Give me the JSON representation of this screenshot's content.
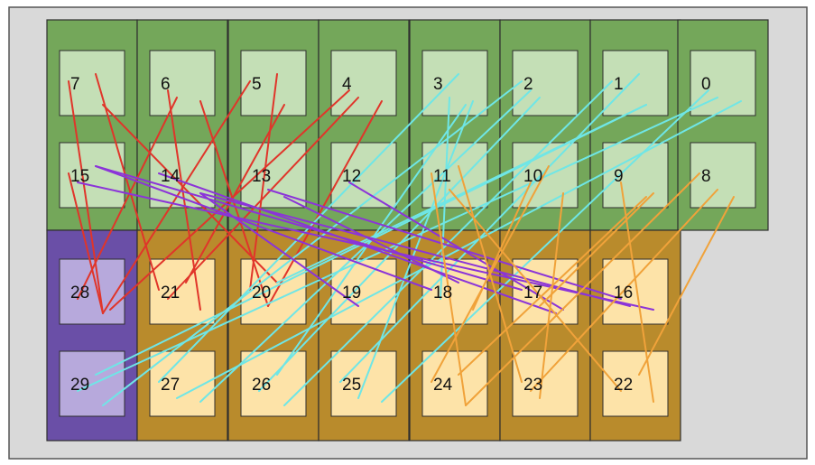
{
  "colors": {
    "background": "#d9d9d9",
    "frame_border": "#555555",
    "green_block": "#74a75a",
    "green_inner": "#c4dfb6",
    "yellow_block": "#b98b2c",
    "yellow_inner": "#fde3a8",
    "purple_block": "#6a4fa7",
    "purple_inner": "#b7a9dc",
    "block_border": "#2e2e2e",
    "edge_red": "#e0352a",
    "edge_cyan": "#6fe6e6",
    "edge_purple": "#8b34d8",
    "edge_orange": "#f0a23a"
  },
  "nodes": [
    {
      "id": "0",
      "group": "green"
    },
    {
      "id": "1",
      "group": "green"
    },
    {
      "id": "2",
      "group": "green"
    },
    {
      "id": "3",
      "group": "green"
    },
    {
      "id": "4",
      "group": "green"
    },
    {
      "id": "5",
      "group": "green"
    },
    {
      "id": "6",
      "group": "green"
    },
    {
      "id": "7",
      "group": "green"
    },
    {
      "id": "8",
      "group": "green"
    },
    {
      "id": "9",
      "group": "green"
    },
    {
      "id": "10",
      "group": "green"
    },
    {
      "id": "11",
      "group": "green"
    },
    {
      "id": "12",
      "group": "green"
    },
    {
      "id": "13",
      "group": "green"
    },
    {
      "id": "14",
      "group": "green"
    },
    {
      "id": "15",
      "group": "green"
    },
    {
      "id": "16",
      "group": "yellow"
    },
    {
      "id": "17",
      "group": "yellow"
    },
    {
      "id": "18",
      "group": "yellow"
    },
    {
      "id": "19",
      "group": "yellow"
    },
    {
      "id": "20",
      "group": "yellow"
    },
    {
      "id": "21",
      "group": "yellow"
    },
    {
      "id": "22",
      "group": "yellow"
    },
    {
      "id": "23",
      "group": "yellow"
    },
    {
      "id": "24",
      "group": "yellow"
    },
    {
      "id": "25",
      "group": "yellow"
    },
    {
      "id": "26",
      "group": "yellow"
    },
    {
      "id": "27",
      "group": "yellow"
    },
    {
      "id": "28",
      "group": "purple"
    },
    {
      "id": "29",
      "group": "purple"
    }
  ],
  "edges": [
    {
      "from": "7",
      "to": "28",
      "color": "edge_red"
    },
    {
      "from": "6",
      "to": "28",
      "color": "edge_red"
    },
    {
      "from": "5",
      "to": "21",
      "color": "edge_red"
    },
    {
      "from": "4",
      "to": "28",
      "color": "edge_red"
    },
    {
      "from": "7",
      "to": "21",
      "color": "edge_red"
    },
    {
      "from": "6",
      "to": "20",
      "color": "edge_red"
    },
    {
      "from": "5",
      "to": "28",
      "color": "edge_red"
    },
    {
      "from": "4",
      "to": "21",
      "color": "edge_red"
    },
    {
      "from": "7",
      "to": "20",
      "color": "edge_red"
    },
    {
      "from": "6",
      "to": "21",
      "color": "edge_red"
    },
    {
      "from": "5",
      "to": "20",
      "color": "edge_red"
    },
    {
      "from": "4",
      "to": "20",
      "color": "edge_red"
    },
    {
      "from": "15",
      "to": "28",
      "color": "edge_red"
    },
    {
      "from": "0",
      "to": "29",
      "color": "edge_cyan"
    },
    {
      "from": "1",
      "to": "29",
      "color": "edge_cyan"
    },
    {
      "from": "2",
      "to": "27",
      "color": "edge_cyan"
    },
    {
      "from": "3",
      "to": "27",
      "color": "edge_cyan"
    },
    {
      "from": "0",
      "to": "27",
      "color": "edge_cyan"
    },
    {
      "from": "1",
      "to": "26",
      "color": "edge_cyan"
    },
    {
      "from": "2",
      "to": "26",
      "color": "edge_cyan"
    },
    {
      "from": "3",
      "to": "26",
      "color": "edge_cyan"
    },
    {
      "from": "0",
      "to": "25",
      "color": "edge_cyan"
    },
    {
      "from": "1",
      "to": "25",
      "color": "edge_cyan"
    },
    {
      "from": "3",
      "to": "25",
      "color": "edge_cyan"
    },
    {
      "from": "2",
      "to": "29",
      "color": "edge_cyan"
    },
    {
      "from": "3",
      "to": "18",
      "color": "edge_cyan"
    },
    {
      "from": "1",
      "to": "20",
      "color": "edge_cyan"
    },
    {
      "from": "15",
      "to": "16",
      "color": "edge_purple"
    },
    {
      "from": "15",
      "to": "17",
      "color": "edge_purple"
    },
    {
      "from": "14",
      "to": "16",
      "color": "edge_purple"
    },
    {
      "from": "14",
      "to": "17",
      "color": "edge_purple"
    },
    {
      "from": "13",
      "to": "16",
      "color": "edge_purple"
    },
    {
      "from": "13",
      "to": "18",
      "color": "edge_purple"
    },
    {
      "from": "12",
      "to": "17",
      "color": "edge_purple"
    },
    {
      "from": "15",
      "to": "18",
      "color": "edge_purple"
    },
    {
      "from": "14",
      "to": "19",
      "color": "edge_purple"
    },
    {
      "from": "8",
      "to": "24",
      "color": "edge_orange"
    },
    {
      "from": "8",
      "to": "23",
      "color": "edge_orange"
    },
    {
      "from": "9",
      "to": "24",
      "color": "edge_orange"
    },
    {
      "from": "9",
      "to": "22",
      "color": "edge_orange"
    },
    {
      "from": "10",
      "to": "24",
      "color": "edge_orange"
    },
    {
      "from": "10",
      "to": "23",
      "color": "edge_orange"
    },
    {
      "from": "11",
      "to": "24",
      "color": "edge_orange"
    },
    {
      "from": "11",
      "to": "22",
      "color": "edge_orange"
    },
    {
      "from": "8",
      "to": "22",
      "color": "edge_orange"
    },
    {
      "from": "10",
      "to": "18",
      "color": "edge_orange"
    },
    {
      "from": "11",
      "to": "23",
      "color": "edge_orange"
    },
    {
      "from": "9",
      "to": "17",
      "color": "edge_orange"
    }
  ]
}
